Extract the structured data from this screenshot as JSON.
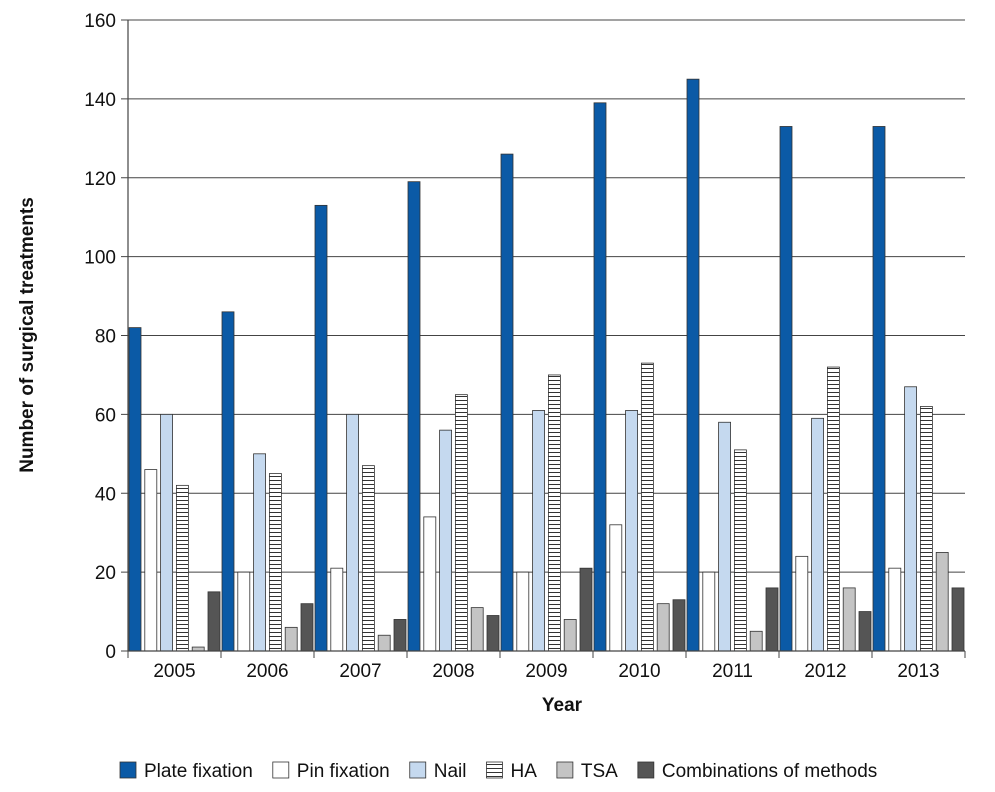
{
  "chart_data": {
    "type": "bar",
    "xlabel": "Year",
    "ylabel": "Number of surgical treatments",
    "ylim": [
      0,
      160
    ],
    "yticks": [
      0,
      20,
      40,
      60,
      80,
      100,
      120,
      140,
      160
    ],
    "grid": true,
    "legend_position": "bottom",
    "categories": [
      "2005",
      "2006",
      "2007",
      "2008",
      "2009",
      "2010",
      "2011",
      "2012",
      "2013"
    ],
    "series": [
      {
        "name": "Plate fixation",
        "color": "#0b5aa6",
        "pattern": "solid",
        "values": [
          82,
          86,
          113,
          119,
          126,
          139,
          145,
          133,
          133
        ]
      },
      {
        "name": "Pin fixation",
        "color": "#ffffff",
        "pattern": "solid",
        "values": [
          46,
          20,
          21,
          34,
          20,
          32,
          20,
          24,
          21
        ]
      },
      {
        "name": "Nail",
        "color": "#c5d9ef",
        "pattern": "solid",
        "values": [
          60,
          50,
          60,
          56,
          61,
          61,
          58,
          59,
          67
        ]
      },
      {
        "name": "HA",
        "color": "#ffffff",
        "pattern": "horizontal-lines",
        "values": [
          42,
          45,
          47,
          65,
          70,
          73,
          51,
          72,
          62
        ]
      },
      {
        "name": "TSA",
        "color": "#c4c4c4",
        "pattern": "solid",
        "values": [
          1,
          6,
          4,
          11,
          8,
          12,
          5,
          16,
          25
        ]
      },
      {
        "name": "Combinations of methods",
        "color": "#555555",
        "pattern": "solid",
        "values": [
          15,
          12,
          8,
          9,
          21,
          13,
          16,
          10,
          16
        ]
      }
    ]
  }
}
